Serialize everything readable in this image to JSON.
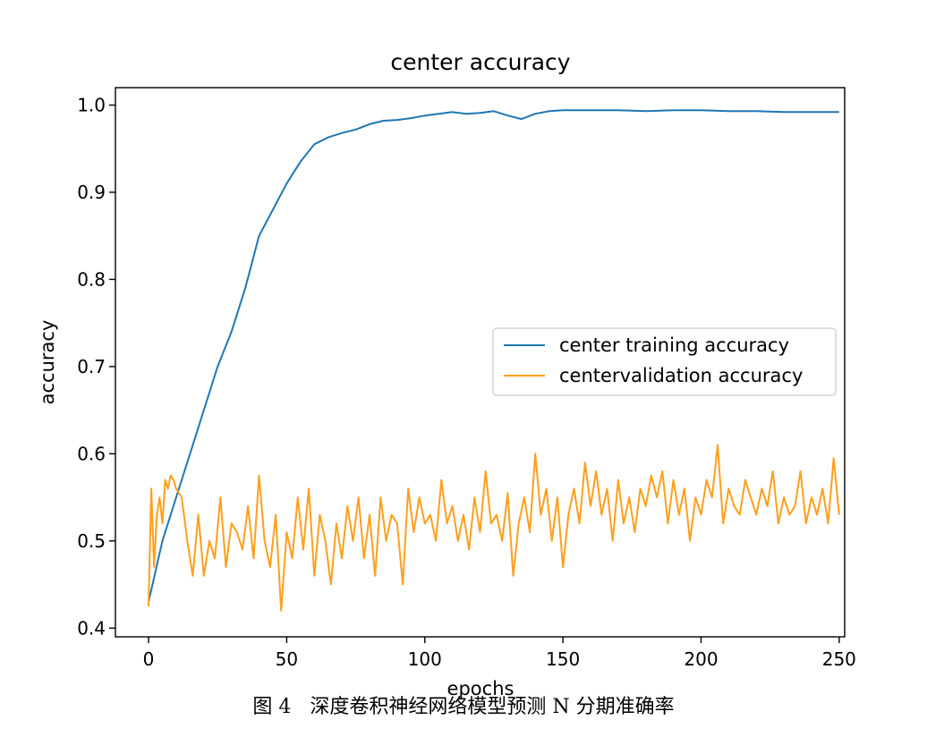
{
  "figure": {
    "caption": "图 4   深度卷积神经网络模型预测 N 分期准确率"
  },
  "chart_data": {
    "type": "line",
    "title": "center accuracy",
    "xlabel": "epochs",
    "ylabel": "accuracy",
    "xlim": [
      -12,
      252
    ],
    "ylim": [
      0.39,
      1.02
    ],
    "xticks": [
      0,
      50,
      100,
      150,
      200,
      250
    ],
    "yticks": [
      0.4,
      0.5,
      0.6,
      0.7,
      0.8,
      0.9,
      1.0
    ],
    "xtick_labels": [
      "0",
      "50",
      "100",
      "150",
      "200",
      "250"
    ],
    "ytick_labels": [
      "0.4",
      "0.5",
      "0.6",
      "0.7",
      "0.8",
      "0.9",
      "1.0"
    ],
    "legend_position": "center-right",
    "grid": false,
    "series": [
      {
        "name": "center training accuracy",
        "color": "#1f77b4",
        "x": [
          0,
          5,
          10,
          15,
          20,
          25,
          30,
          35,
          40,
          45,
          50,
          55,
          60,
          65,
          70,
          75,
          80,
          85,
          90,
          95,
          100,
          105,
          110,
          115,
          120,
          125,
          130,
          135,
          140,
          145,
          150,
          160,
          170,
          180,
          190,
          200,
          210,
          220,
          230,
          240,
          250
        ],
        "values": [
          0.43,
          0.5,
          0.55,
          0.6,
          0.65,
          0.7,
          0.74,
          0.79,
          0.85,
          0.88,
          0.91,
          0.935,
          0.955,
          0.963,
          0.968,
          0.972,
          0.978,
          0.982,
          0.983,
          0.985,
          0.988,
          0.99,
          0.992,
          0.99,
          0.991,
          0.993,
          0.988,
          0.984,
          0.99,
          0.993,
          0.994,
          0.994,
          0.994,
          0.993,
          0.994,
          0.994,
          0.993,
          0.993,
          0.992,
          0.992,
          0.992
        ]
      },
      {
        "name": "centervalidation accuracy",
        "color": "#ff9f1c",
        "x": [
          0,
          1,
          2,
          3,
          4,
          5,
          6,
          7,
          8,
          9,
          10,
          12,
          14,
          16,
          18,
          20,
          22,
          24,
          26,
          28,
          30,
          32,
          34,
          36,
          38,
          40,
          42,
          44,
          46,
          48,
          50,
          52,
          54,
          56,
          58,
          60,
          62,
          64,
          66,
          68,
          70,
          72,
          74,
          76,
          78,
          80,
          82,
          84,
          86,
          88,
          90,
          92,
          94,
          96,
          98,
          100,
          102,
          104,
          106,
          108,
          110,
          112,
          114,
          116,
          118,
          120,
          122,
          124,
          126,
          128,
          130,
          132,
          134,
          136,
          138,
          140,
          142,
          144,
          146,
          148,
          150,
          152,
          154,
          156,
          158,
          160,
          162,
          164,
          166,
          168,
          170,
          172,
          174,
          176,
          178,
          180,
          182,
          184,
          186,
          188,
          190,
          192,
          194,
          196,
          198,
          200,
          202,
          204,
          206,
          208,
          210,
          212,
          214,
          216,
          218,
          220,
          222,
          224,
          226,
          228,
          230,
          232,
          234,
          236,
          238,
          240,
          242,
          244,
          246,
          248,
          250
        ],
        "values": [
          0.425,
          0.56,
          0.47,
          0.53,
          0.55,
          0.52,
          0.57,
          0.56,
          0.575,
          0.57,
          0.56,
          0.55,
          0.5,
          0.46,
          0.53,
          0.46,
          0.5,
          0.48,
          0.55,
          0.47,
          0.52,
          0.51,
          0.49,
          0.54,
          0.48,
          0.575,
          0.5,
          0.47,
          0.53,
          0.42,
          0.51,
          0.48,
          0.55,
          0.49,
          0.56,
          0.46,
          0.53,
          0.5,
          0.45,
          0.52,
          0.48,
          0.54,
          0.5,
          0.55,
          0.48,
          0.53,
          0.46,
          0.55,
          0.5,
          0.53,
          0.52,
          0.45,
          0.56,
          0.51,
          0.55,
          0.52,
          0.53,
          0.5,
          0.57,
          0.52,
          0.54,
          0.5,
          0.53,
          0.49,
          0.55,
          0.51,
          0.58,
          0.52,
          0.53,
          0.5,
          0.555,
          0.46,
          0.52,
          0.55,
          0.51,
          0.6,
          0.53,
          0.56,
          0.5,
          0.55,
          0.47,
          0.53,
          0.56,
          0.52,
          0.59,
          0.54,
          0.58,
          0.53,
          0.56,
          0.5,
          0.57,
          0.52,
          0.55,
          0.51,
          0.56,
          0.54,
          0.575,
          0.55,
          0.58,
          0.52,
          0.57,
          0.53,
          0.56,
          0.5,
          0.55,
          0.53,
          0.57,
          0.55,
          0.61,
          0.52,
          0.56,
          0.54,
          0.53,
          0.57,
          0.55,
          0.53,
          0.56,
          0.54,
          0.58,
          0.52,
          0.55,
          0.53,
          0.54,
          0.58,
          0.52,
          0.55,
          0.53,
          0.56,
          0.52,
          0.595,
          0.53
        ]
      }
    ]
  }
}
